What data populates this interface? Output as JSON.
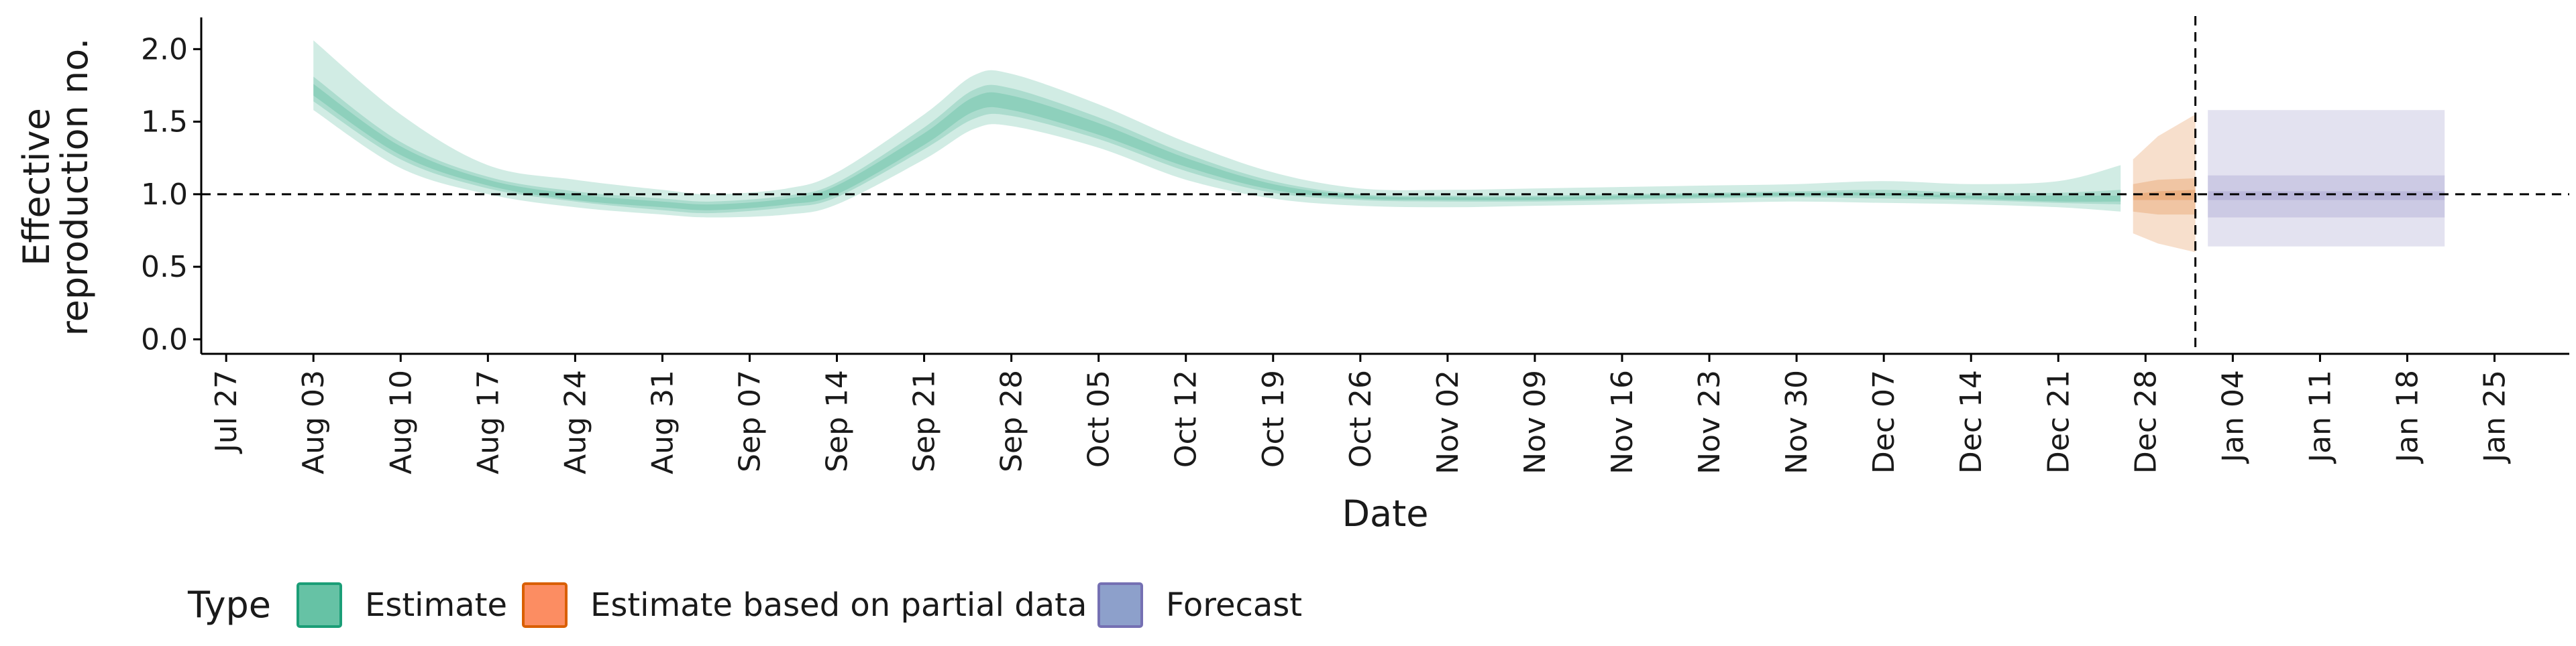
{
  "chart_data": {
    "type": "area",
    "xlabel": "Date",
    "ylabel_lines": [
      "Effective",
      "reproduction no."
    ],
    "ylim": [
      -0.1,
      2.2
    ],
    "y_ticks": [
      0.0,
      0.5,
      1.0,
      1.5,
      2.0
    ],
    "y_tick_labels": [
      "0.0",
      "0.5",
      "1.0",
      "1.5",
      "2.0"
    ],
    "x_domain": [
      "2020-07-25",
      "2021-01-31"
    ],
    "x_ticks": [
      "2020-07-27",
      "2020-08-03",
      "2020-08-10",
      "2020-08-17",
      "2020-08-24",
      "2020-08-31",
      "2020-09-07",
      "2020-09-14",
      "2020-09-21",
      "2020-09-28",
      "2020-10-05",
      "2020-10-12",
      "2020-10-19",
      "2020-10-26",
      "2020-11-02",
      "2020-11-09",
      "2020-11-16",
      "2020-11-23",
      "2020-11-30",
      "2020-12-07",
      "2020-12-14",
      "2020-12-21",
      "2020-12-28",
      "2021-01-04",
      "2021-01-11",
      "2021-01-18",
      "2021-01-25"
    ],
    "x_tick_labels": [
      "Jul 27",
      "Aug 03",
      "Aug 10",
      "Aug 17",
      "Aug 24",
      "Aug 31",
      "Sep 07",
      "Sep 14",
      "Sep 21",
      "Sep 28",
      "Oct 05",
      "Oct 12",
      "Oct 19",
      "Oct 26",
      "Nov 02",
      "Nov 09",
      "Nov 16",
      "Nov 23",
      "Nov 30",
      "Dec 07",
      "Dec 14",
      "Dec 21",
      "Dec 28",
      "Jan 04",
      "Jan 11",
      "Jan 18",
      "Jan 25"
    ],
    "reference_hline": 1.0,
    "reference_vline": "2021-01-01",
    "legend_title": "Type",
    "legend_position": "bottom",
    "grid": false,
    "colors": {
      "Estimate": "#66c2a5",
      "Estimate based on partial data": "#fc8d62",
      "Forecast": "#8da0cb",
      "estimate_fill": "#1b9e77",
      "partial_fill": "#d95f02",
      "forecast_fill": "#7570b3"
    },
    "series": [
      {
        "name": "Estimate",
        "x": [
          "2020-08-03",
          "2020-08-10",
          "2020-08-17",
          "2020-08-24",
          "2020-08-31",
          "2020-09-04",
          "2020-09-10",
          "2020-09-14",
          "2020-09-21",
          "2020-09-25",
          "2020-09-28",
          "2020-10-05",
          "2020-10-12",
          "2020-10-19",
          "2020-10-26",
          "2020-11-02",
          "2020-11-09",
          "2020-11-16",
          "2020-11-23",
          "2020-11-30",
          "2020-12-07",
          "2020-12-14",
          "2020-12-21",
          "2020-12-26"
        ],
        "median": [
          1.72,
          1.3,
          1.08,
          0.98,
          0.93,
          0.91,
          0.95,
          1.03,
          1.38,
          1.62,
          1.63,
          1.45,
          1.22,
          1.05,
          0.98,
          0.97,
          0.97,
          0.98,
          0.99,
          1.0,
          1.0,
          0.98,
          0.97,
          0.97
        ],
        "lower_20": [
          1.68,
          1.27,
          1.06,
          0.96,
          0.91,
          0.89,
          0.93,
          1.0,
          1.34,
          1.57,
          1.58,
          1.41,
          1.19,
          1.03,
          0.97,
          0.96,
          0.96,
          0.97,
          0.98,
          0.99,
          0.99,
          0.97,
          0.95,
          0.95
        ],
        "upper_20": [
          1.76,
          1.33,
          1.1,
          1.0,
          0.95,
          0.93,
          0.97,
          1.06,
          1.42,
          1.67,
          1.68,
          1.49,
          1.25,
          1.07,
          0.99,
          0.98,
          0.98,
          0.99,
          1.0,
          1.01,
          1.01,
          0.99,
          0.99,
          0.99
        ],
        "lower_50": [
          1.64,
          1.24,
          1.04,
          0.95,
          0.89,
          0.87,
          0.91,
          0.98,
          1.31,
          1.52,
          1.54,
          1.38,
          1.16,
          1.01,
          0.96,
          0.95,
          0.95,
          0.96,
          0.97,
          0.98,
          0.97,
          0.96,
          0.94,
          0.93
        ],
        "upper_50": [
          1.81,
          1.36,
          1.12,
          1.02,
          0.97,
          0.95,
          0.99,
          1.08,
          1.46,
          1.72,
          1.73,
          1.53,
          1.28,
          1.09,
          1.0,
          0.99,
          0.99,
          1.0,
          1.01,
          1.02,
          1.03,
          1.01,
          1.01,
          1.03
        ],
        "lower_90": [
          1.58,
          1.18,
          1.0,
          0.91,
          0.86,
          0.84,
          0.86,
          0.93,
          1.24,
          1.45,
          1.47,
          1.32,
          1.1,
          0.97,
          0.92,
          0.91,
          0.92,
          0.93,
          0.94,
          0.95,
          0.94,
          0.93,
          0.91,
          0.88
        ],
        "upper_90": [
          2.06,
          1.55,
          1.2,
          1.1,
          1.03,
          1.0,
          1.04,
          1.15,
          1.55,
          1.82,
          1.83,
          1.62,
          1.36,
          1.15,
          1.04,
          1.03,
          1.04,
          1.05,
          1.06,
          1.07,
          1.09,
          1.07,
          1.09,
          1.2
        ]
      },
      {
        "name": "Estimate based on partial data",
        "x": [
          "2020-12-27",
          "2020-12-29",
          "2021-01-01"
        ],
        "median": [
          0.98,
          0.99,
          0.99
        ],
        "lower_20": [
          0.96,
          0.96,
          0.96
        ],
        "upper_20": [
          1.0,
          1.02,
          1.03
        ],
        "lower_50": [
          0.88,
          0.86,
          0.86
        ],
        "upper_50": [
          1.07,
          1.1,
          1.11
        ],
        "lower_90": [
          0.73,
          0.66,
          0.6
        ],
        "upper_90": [
          1.24,
          1.4,
          1.55
        ]
      },
      {
        "name": "Forecast",
        "x": [
          "2021-01-02",
          "2021-01-21"
        ],
        "median": [
          0.99,
          0.99
        ],
        "lower_20": [
          0.96,
          0.96
        ],
        "upper_20": [
          1.02,
          1.02
        ],
        "lower_50": [
          0.84,
          0.84
        ],
        "upper_50": [
          1.13,
          1.13
        ],
        "lower_90": [
          0.64,
          0.64
        ],
        "upper_90": [
          1.58,
          1.58
        ]
      }
    ]
  }
}
